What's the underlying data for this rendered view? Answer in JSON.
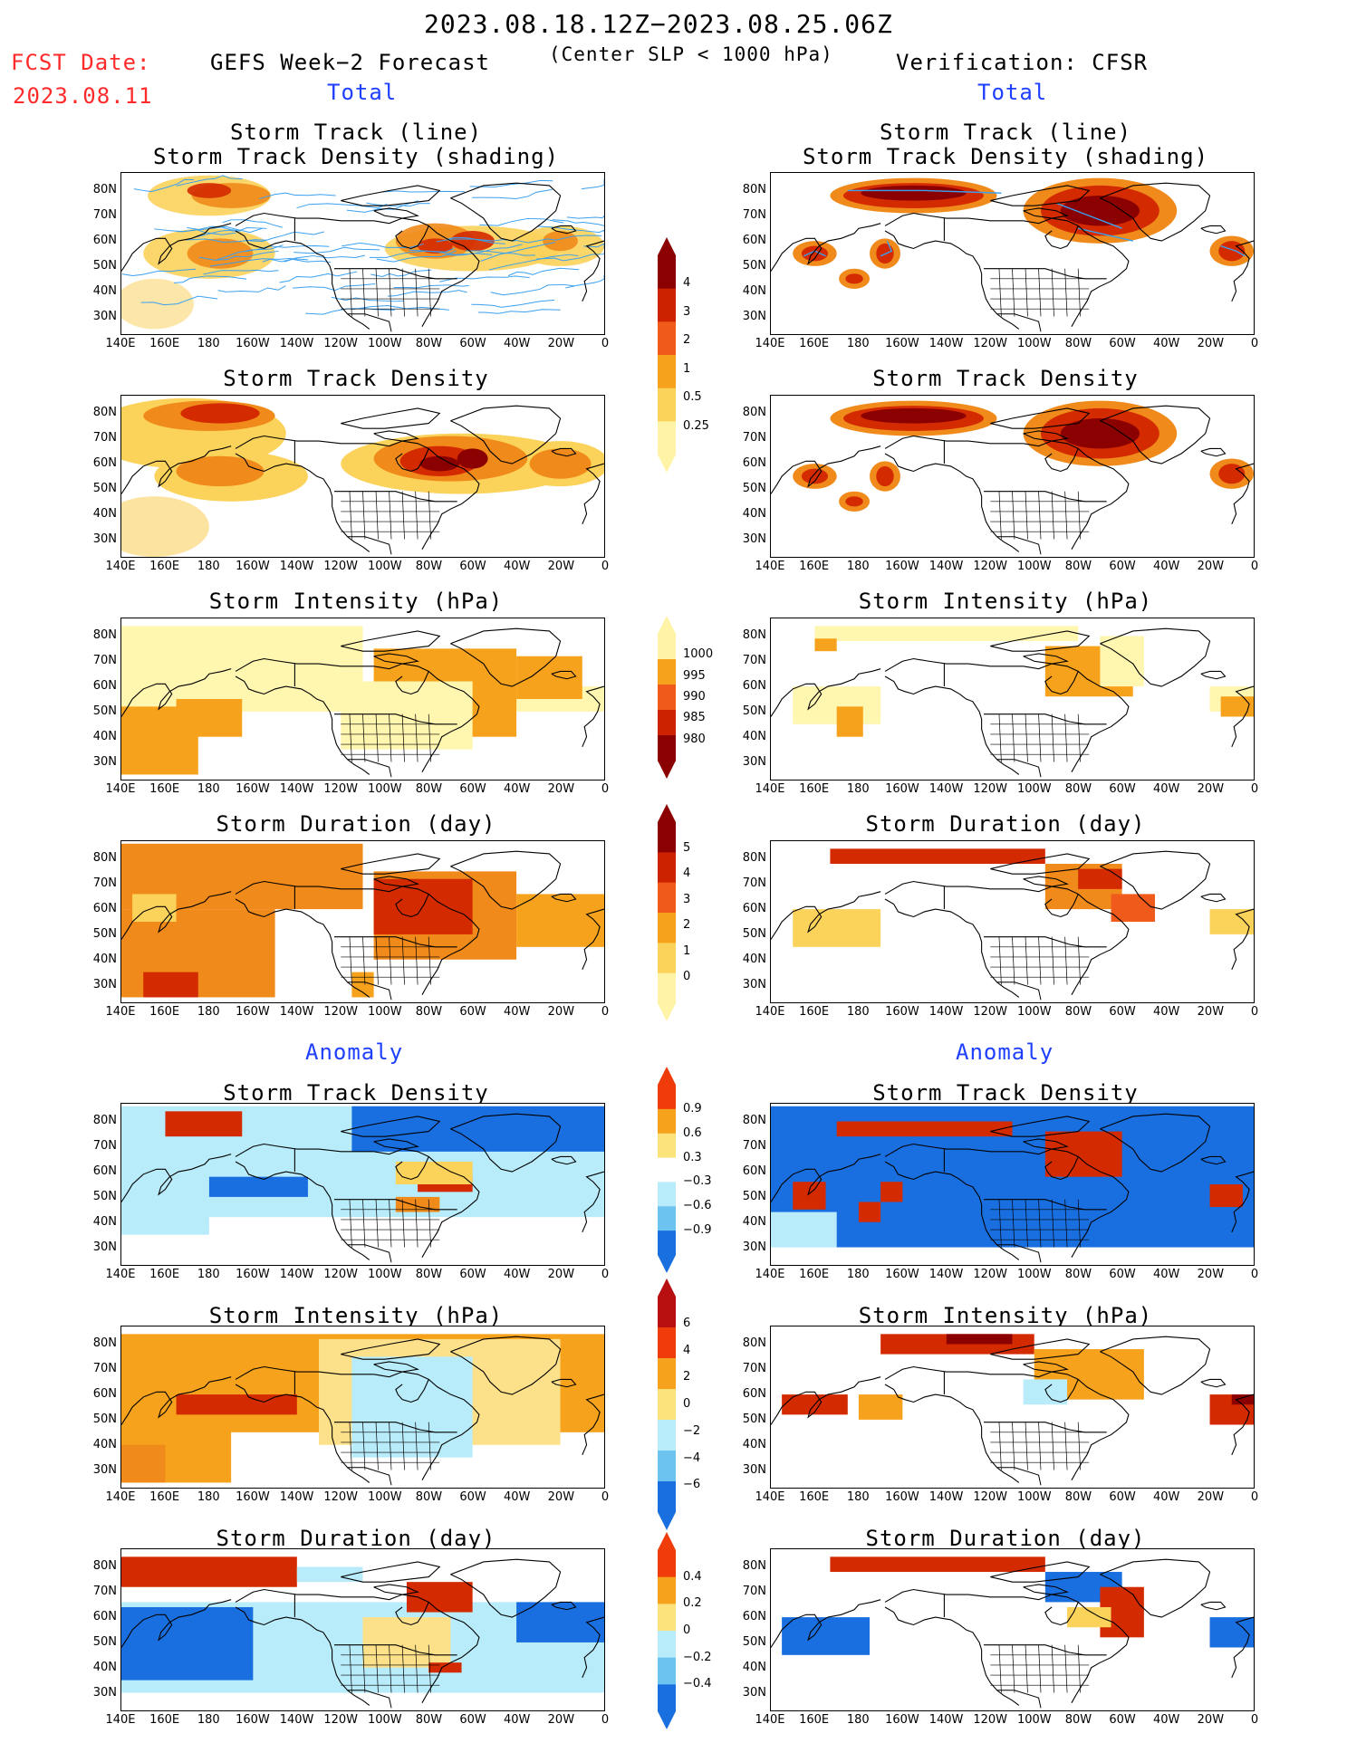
{
  "header": {
    "date_range": "2023.08.18.12Z−2023.08.25.06Z",
    "fcst_label": "FCST Date:",
    "fcst_date": "2023.08.11",
    "left_title": "GEFS Week−2 Forecast",
    "center_sub": "(Center SLP < 1000 hPa)",
    "right_title": "Verification: CFSR",
    "left_total": "Total",
    "right_total": "Total",
    "left_anomaly": "Anomaly",
    "right_anomaly": "Anomaly"
  },
  "axes": {
    "lat_labels": [
      "80N",
      "70N",
      "60N",
      "50N",
      "40N",
      "30N"
    ],
    "lon_labels": [
      "140E",
      "160E",
      "180",
      "160W",
      "140W",
      "120W",
      "100W",
      "80W",
      "60W",
      "40W",
      "20W",
      "0"
    ]
  },
  "panel_titles": {
    "track_line": "Storm Track (line)",
    "track_shading": "Storm Track Density (shading)",
    "density": "Storm Track Density",
    "intensity": "Storm Intensity (hPa)",
    "duration": "Storm Duration (day)"
  },
  "colorbars": {
    "density_total": {
      "labels": [
        "4",
        "3",
        "2",
        "1",
        "0.5",
        "0.25"
      ],
      "colors": [
        "#8b0000",
        "#cc2200",
        "#f05a1a",
        "#f7a21c",
        "#fbd25a",
        "#fff3a8"
      ]
    },
    "intensity_total": {
      "labels": [
        "1000",
        "995",
        "990",
        "985",
        "980"
      ],
      "colors": [
        "#fff3a8",
        "#f7a21c",
        "#f05a1a",
        "#cc2200",
        "#8b0000"
      ]
    },
    "duration_total": {
      "labels": [
        "5",
        "4",
        "3",
        "2",
        "1",
        "0"
      ],
      "colors": [
        "#8b0000",
        "#cc2200",
        "#f05a1a",
        "#f7a21c",
        "#fbd25a",
        "#fff3a8"
      ]
    },
    "density_anom": {
      "labels": [
        "0.9",
        "0.6",
        "0.3",
        "−0.3",
        "−0.6",
        "−0.9"
      ],
      "colors": [
        "#f03c0a",
        "#f7a21c",
        "#fbe27a",
        "#ffffff",
        "#b8ecfa",
        "#6cc3f0",
        "#1a6fe0"
      ]
    },
    "intensity_anom": {
      "labels": [
        "6",
        "4",
        "2",
        "0",
        "−2",
        "−4",
        "−6"
      ],
      "colors": [
        "#b81010",
        "#f03c0a",
        "#f7a21c",
        "#fbe27a",
        "#b8ecfa",
        "#6cc3f0",
        "#1a6fe0"
      ]
    },
    "duration_anom": {
      "labels": [
        "0.4",
        "0.2",
        "0",
        "−0.2",
        "−0.4"
      ],
      "colors": [
        "#f03c0a",
        "#f7a21c",
        "#fbe27a",
        "#b8ecfa",
        "#6cc3f0",
        "#1a6fe0"
      ]
    }
  },
  "colors": {
    "pos_dark": "#8b0000",
    "pos_red": "#d42a00",
    "pos_orange": "#f7a21c",
    "pos_yellow": "#fde08a",
    "neg_light": "#b8ecfa",
    "neg_mid": "#6cc3f0",
    "neg_dark": "#1a6fe0",
    "track_line": "#3aa0f0",
    "title_red": "#ff2a2a",
    "title_blue": "#1f3fff"
  }
}
